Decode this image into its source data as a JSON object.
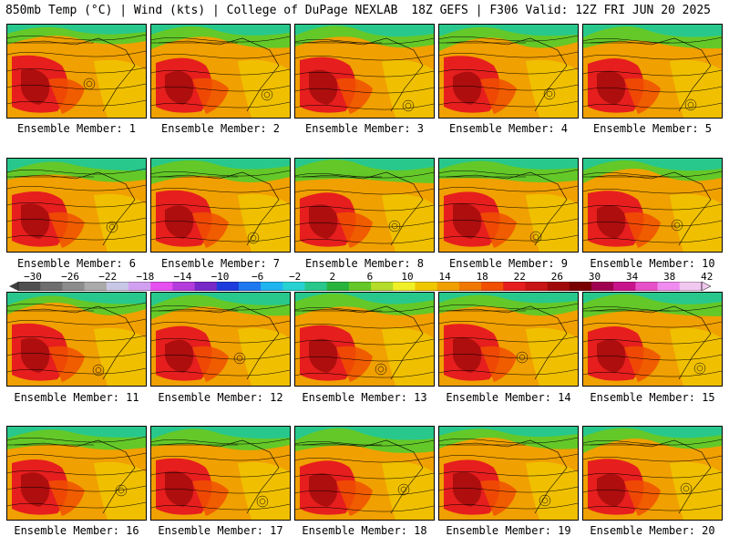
{
  "header": {
    "left": "850mb Temp (°C) | Wind (kts) | College of DuPage NEXLAB",
    "right": "18Z GEFS | F306 Valid: 12Z FRI JUN 20 2025"
  },
  "panels": [
    "Ensemble Member: 1",
    "Ensemble Member: 2",
    "Ensemble Member: 3",
    "Ensemble Member: 4",
    "Ensemble Member: 5",
    "Ensemble Member: 6",
    "Ensemble Member: 7",
    "Ensemble Member: 8",
    "Ensemble Member: 9",
    "Ensemble Member: 10",
    "Ensemble Member: 11",
    "Ensemble Member: 12",
    "Ensemble Member: 13",
    "Ensemble Member: 14",
    "Ensemble Member: 15",
    "Ensemble Member: 16",
    "Ensemble Member: 17",
    "Ensemble Member: 18",
    "Ensemble Member: 19",
    "Ensemble Member: 20"
  ],
  "colorbar": {
    "labels": [
      "−30",
      "−26",
      "−22",
      "−18",
      "−14",
      "−10",
      "−6",
      "−2",
      "2",
      "6",
      "10",
      "14",
      "18",
      "22",
      "26",
      "30",
      "34",
      "38",
      "42"
    ],
    "colors": [
      "#505050",
      "#6e6e6e",
      "#8c8c8c",
      "#aaaaaa",
      "#c8c8e6",
      "#d2a0f0",
      "#e650f0",
      "#b43cdc",
      "#7828c8",
      "#1e3cdc",
      "#1e78f0",
      "#1eb4f0",
      "#28d2d2",
      "#28c88c",
      "#28b43c",
      "#64c828",
      "#b4dc28",
      "#f0f028",
      "#f0c800",
      "#f0a000",
      "#f07800",
      "#f05000",
      "#e61e1e",
      "#c81414",
      "#a00a0a",
      "#780000",
      "#a00050",
      "#c8148c",
      "#e650c8",
      "#f08cf0",
      "#f0c8f0"
    ]
  }
}
